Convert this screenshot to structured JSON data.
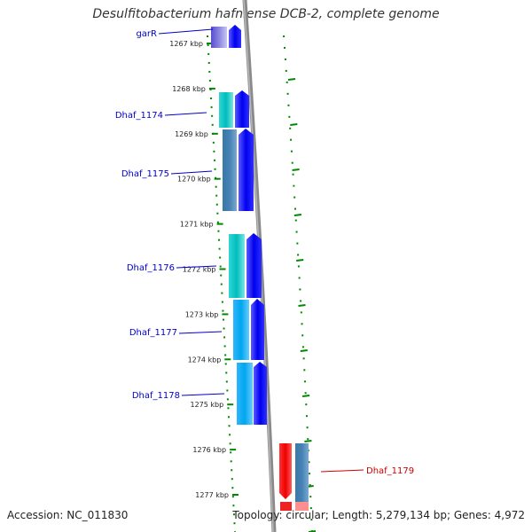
{
  "title": "Desulfitobacterium hafniense DCB-2, complete genome",
  "footer": {
    "accession": "Accession: NC_011830",
    "summary": "Topology: circular; Length: 5,279,134 bp; Genes: 4,972"
  },
  "ticks": [
    "1267 kbp",
    "1268 kbp",
    "1269 kbp",
    "1270 kbp",
    "1271 kbp",
    "1272 kbp",
    "1273 kbp",
    "1274 kbp",
    "1275 kbp",
    "1276 kbp",
    "1277 kbp"
  ],
  "genes": [
    {
      "id": "garR",
      "label": "garR",
      "color": "#0000cc"
    },
    {
      "id": "Dhaf_1174",
      "label": "Dhaf_1174",
      "color": "#0000cc"
    },
    {
      "id": "Dhaf_1175",
      "label": "Dhaf_1175",
      "color": "#0000cc"
    },
    {
      "id": "Dhaf_1176",
      "label": "Dhaf_1176",
      "color": "#0000cc"
    },
    {
      "id": "Dhaf_1177",
      "label": "Dhaf_1177",
      "color": "#0000cc"
    },
    {
      "id": "Dhaf_1178",
      "label": "Dhaf_1178",
      "color": "#0000cc"
    },
    {
      "id": "Dhaf_1179",
      "label": "Dhaf_1179",
      "color": "#cc0000"
    }
  ],
  "colors": {
    "forward_gene": "#0000ff",
    "reverse_gene": "#ff0000",
    "backbone": "#888888",
    "tick": "#008800"
  }
}
